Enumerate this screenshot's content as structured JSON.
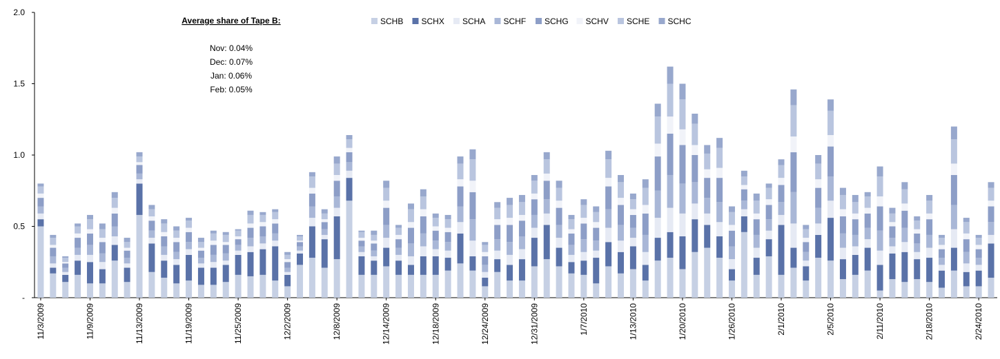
{
  "chart_data": {
    "type": "stacked_bar",
    "annotation_title": "Average share of Tape B:",
    "annotations": [
      "Nov: 0.04%",
      "Dec: 0.07%",
      "Jan: 0.06%",
      "Feb: 0.05%"
    ],
    "legend": "top",
    "categories": [
      "11/3/2009",
      null,
      null,
      null,
      "11/9/2009",
      null,
      null,
      null,
      "11/13/2009",
      null,
      null,
      null,
      "11/19/2009",
      null,
      null,
      null,
      "11/25/2009",
      null,
      null,
      null,
      "12/2/2009",
      null,
      null,
      null,
      "12/8/2009",
      null,
      null,
      null,
      "12/14/2009",
      null,
      null,
      null,
      "12/18/2009",
      null,
      null,
      null,
      "12/24/2009",
      null,
      null,
      null,
      "12/31/2009",
      null,
      null,
      null,
      "1/7/2010",
      null,
      null,
      null,
      "1/13/2010",
      null,
      null,
      null,
      "1/20/2010",
      null,
      null,
      null,
      "1/26/2010",
      null,
      null,
      null,
      "2/1/2010",
      null,
      null,
      null,
      "2/5/2010",
      null,
      null,
      null,
      "2/11/2010",
      null,
      null,
      null,
      "2/18/2010",
      null,
      null,
      null,
      "2/24/2010",
      null
    ],
    "ylim": [
      0,
      2.0
    ],
    "yticks": [
      {
        "value": 0,
        "label": "-"
      },
      0.5,
      {
        "value": 1.0,
        "label": "1.0"
      },
      1.5,
      {
        "value": 2.0,
        "label": "2.0"
      }
    ],
    "series": [
      {
        "name": "SCHB",
        "color": "#c6d0e4",
        "values": [
          0.5,
          0.17,
          0.11,
          0.16,
          0.1,
          0.1,
          0.26,
          0.11,
          0.58,
          0.18,
          0.14,
          0.1,
          0.12,
          0.09,
          0.09,
          0.11,
          0.16,
          0.15,
          0.16,
          0.12,
          0.08,
          0.23,
          0.28,
          0.21,
          0.27,
          0.68,
          0.16,
          0.16,
          0.22,
          0.16,
          0.16,
          0.16,
          0.16,
          0.19,
          0.24,
          0.19,
          0.08,
          0.18,
          0.12,
          0.12,
          0.22,
          0.27,
          0.22,
          0.17,
          0.16,
          0.1,
          0.22,
          0.17,
          0.2,
          0.12,
          0.26,
          0.28,
          0.2,
          0.32,
          0.35,
          0.28,
          0.12,
          0.46,
          0.16,
          0.29,
          0.16,
          0.21,
          0.12,
          0.28,
          0.26,
          0.13,
          0.16,
          0.19,
          0.05,
          0.13,
          0.11,
          0.13,
          0.11,
          0.07,
          0.19,
          0.08,
          0.08,
          0.14
        ]
      },
      {
        "name": "SCHX",
        "color": "#5a72a8",
        "values": [
          0.05,
          0.04,
          0.05,
          0.1,
          0.15,
          0.1,
          0.11,
          0.1,
          0.22,
          0.2,
          0.12,
          0.13,
          0.18,
          0.12,
          0.12,
          0.12,
          0.14,
          0.17,
          0.18,
          0.24,
          0.08,
          0.08,
          0.22,
          0.2,
          0.3,
          0.16,
          0.13,
          0.1,
          0.13,
          0.1,
          0.07,
          0.13,
          0.13,
          0.09,
          0.21,
          0.1,
          0.06,
          0.09,
          0.11,
          0.15,
          0.2,
          0.24,
          0.13,
          0.08,
          0.1,
          0.18,
          0.17,
          0.15,
          0.16,
          0.11,
          0.16,
          0.18,
          0.23,
          0.23,
          0.16,
          0.15,
          0.08,
          0.11,
          0.12,
          0.12,
          0.35,
          0.14,
          0.1,
          0.16,
          0.3,
          0.14,
          0.14,
          0.16,
          0.18,
          0.18,
          0.21,
          0.14,
          0.17,
          0.12,
          0.16,
          0.1,
          0.11,
          0.24
        ]
      },
      {
        "name": "SCHA",
        "color": "#e6eaf4",
        "values": [
          0.04,
          0.03,
          0.02,
          0.04,
          0.05,
          0.05,
          0.06,
          0.03,
          0.03,
          0.04,
          0.04,
          0.04,
          0.04,
          0.03,
          0.04,
          0.03,
          0.03,
          0.04,
          0.04,
          0.04,
          0.02,
          0.02,
          0.06,
          0.03,
          0.06,
          0.05,
          0.03,
          0.03,
          0.07,
          0.04,
          0.06,
          0.07,
          0.05,
          0.05,
          0.08,
          0.11,
          0.04,
          0.06,
          0.07,
          0.07,
          0.07,
          0.08,
          0.07,
          0.05,
          0.06,
          0.05,
          0.1,
          0.08,
          0.06,
          0.09,
          0.14,
          0.17,
          0.16,
          0.11,
          0.08,
          0.1,
          0.07,
          0.05,
          0.07,
          0.06,
          0.07,
          0.17,
          0.04,
          0.08,
          0.12,
          0.08,
          0.06,
          0.06,
          0.1,
          0.05,
          0.07,
          0.05,
          0.07,
          0.04,
          0.13,
          0.06,
          0.04,
          0.06
        ]
      },
      {
        "name": "SCHF",
        "color": "#a9b7d7",
        "values": [
          0.05,
          0.05,
          0.03,
          0.05,
          0.07,
          0.06,
          0.07,
          0.04,
          0.04,
          0.05,
          0.06,
          0.05,
          0.05,
          0.04,
          0.05,
          0.05,
          0.04,
          0.06,
          0.05,
          0.05,
          0.03,
          0.03,
          0.08,
          0.04,
          0.08,
          0.06,
          0.04,
          0.04,
          0.09,
          0.05,
          0.09,
          0.09,
          0.06,
          0.06,
          0.11,
          0.15,
          0.05,
          0.08,
          0.09,
          0.09,
          0.09,
          0.1,
          0.09,
          0.07,
          0.09,
          0.07,
          0.13,
          0.11,
          0.07,
          0.12,
          0.19,
          0.23,
          0.21,
          0.15,
          0.11,
          0.14,
          0.09,
          0.06,
          0.09,
          0.08,
          0.09,
          0.22,
          0.06,
          0.11,
          0.17,
          0.1,
          0.08,
          0.08,
          0.14,
          0.06,
          0.1,
          0.06,
          0.09,
          0.05,
          0.17,
          0.08,
          0.05,
          0.09
        ]
      },
      {
        "name": "SCHG",
        "color": "#8d9ec7",
        "values": [
          0.06,
          0.06,
          0.03,
          0.07,
          0.08,
          0.08,
          0.09,
          0.05,
          0.06,
          0.07,
          0.07,
          0.07,
          0.07,
          0.05,
          0.07,
          0.06,
          0.04,
          0.07,
          0.07,
          0.07,
          0.04,
          0.03,
          0.09,
          0.05,
          0.11,
          0.07,
          0.04,
          0.05,
          0.12,
          0.06,
          0.11,
          0.12,
          0.07,
          0.07,
          0.14,
          0.19,
          0.06,
          0.1,
          0.12,
          0.11,
          0.11,
          0.13,
          0.12,
          0.08,
          0.11,
          0.09,
          0.16,
          0.14,
          0.09,
          0.15,
          0.24,
          0.29,
          0.27,
          0.19,
          0.14,
          0.17,
          0.11,
          0.08,
          0.11,
          0.1,
          0.12,
          0.28,
          0.07,
          0.14,
          0.21,
          0.12,
          0.11,
          0.1,
          0.17,
          0.08,
          0.12,
          0.07,
          0.11,
          0.06,
          0.21,
          0.09,
          0.06,
          0.11
        ]
      },
      {
        "name": "SCHV",
        "color": "#f1f3f9",
        "values": [
          0.03,
          0.02,
          0.01,
          0.03,
          0.03,
          0.03,
          0.04,
          0.02,
          0.02,
          0.03,
          0.03,
          0.03,
          0.03,
          0.02,
          0.03,
          0.02,
          0.02,
          0.03,
          0.03,
          0.03,
          0.02,
          0.01,
          0.04,
          0.02,
          0.04,
          0.03,
          0.02,
          0.02,
          0.05,
          0.03,
          0.04,
          0.05,
          0.03,
          0.03,
          0.05,
          0.08,
          0.03,
          0.04,
          0.05,
          0.04,
          0.04,
          0.05,
          0.05,
          0.03,
          0.04,
          0.04,
          0.06,
          0.05,
          0.04,
          0.06,
          0.09,
          0.12,
          0.11,
          0.07,
          0.06,
          0.07,
          0.04,
          0.03,
          0.04,
          0.04,
          0.05,
          0.11,
          0.03,
          0.06,
          0.08,
          0.05,
          0.04,
          0.04,
          0.07,
          0.03,
          0.05,
          0.03,
          0.04,
          0.03,
          0.08,
          0.04,
          0.03,
          0.04
        ]
      },
      {
        "name": "SCHE",
        "color": "#b9c5df",
        "values": [
          0.05,
          0.05,
          0.03,
          0.05,
          0.07,
          0.06,
          0.07,
          0.04,
          0.04,
          0.05,
          0.06,
          0.05,
          0.05,
          0.04,
          0.05,
          0.05,
          0.04,
          0.06,
          0.05,
          0.05,
          0.03,
          0.03,
          0.08,
          0.04,
          0.08,
          0.06,
          0.04,
          0.04,
          0.09,
          0.05,
          0.09,
          0.09,
          0.06,
          0.06,
          0.11,
          0.15,
          0.05,
          0.08,
          0.09,
          0.09,
          0.09,
          0.1,
          0.09,
          0.07,
          0.09,
          0.07,
          0.13,
          0.11,
          0.07,
          0.12,
          0.19,
          0.23,
          0.21,
          0.15,
          0.11,
          0.14,
          0.09,
          0.06,
          0.09,
          0.08,
          0.09,
          0.22,
          0.06,
          0.11,
          0.17,
          0.1,
          0.08,
          0.08,
          0.14,
          0.06,
          0.1,
          0.06,
          0.09,
          0.05,
          0.17,
          0.08,
          0.05,
          0.09
        ]
      },
      {
        "name": "SCHC",
        "color": "#98a8cd",
        "values": [
          0.02,
          0.02,
          0.01,
          0.02,
          0.03,
          0.04,
          0.04,
          0.03,
          0.03,
          0.03,
          0.03,
          0.03,
          0.02,
          0.03,
          0.02,
          0.02,
          0.01,
          0.03,
          0.02,
          0.02,
          0.02,
          0.01,
          0.03,
          0.03,
          0.05,
          0.03,
          0.01,
          0.03,
          0.05,
          0.02,
          0.04,
          0.05,
          0.03,
          0.03,
          0.05,
          0.07,
          0.02,
          0.04,
          0.05,
          0.05,
          0.04,
          0.05,
          0.05,
          0.03,
          0.04,
          0.04,
          0.06,
          0.05,
          0.04,
          0.06,
          0.09,
          0.12,
          0.11,
          0.07,
          0.06,
          0.07,
          0.04,
          0.04,
          0.05,
          0.03,
          0.04,
          0.11,
          0.03,
          0.06,
          0.08,
          0.05,
          0.05,
          0.03,
          0.07,
          0.04,
          0.05,
          0.03,
          0.04,
          0.02,
          0.09,
          0.03,
          0.02,
          0.04
        ]
      }
    ]
  }
}
